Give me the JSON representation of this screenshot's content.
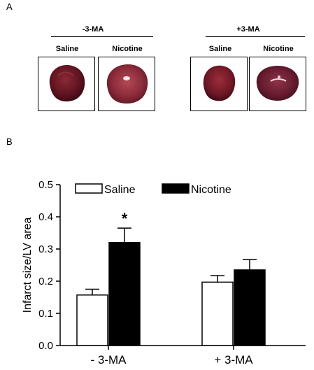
{
  "panel_a": {
    "letter": "A",
    "groups": [
      {
        "label": "-3-MA",
        "subs": [
          "Saline",
          "Nicotine"
        ]
      },
      {
        "label": "+3-MA",
        "subs": [
          "Saline",
          "Nicotine"
        ]
      }
    ]
  },
  "panel_b": {
    "letter": "B"
  },
  "chart_data": {
    "type": "bar",
    "categories": [
      "- 3-MA",
      "+ 3-MA"
    ],
    "series": [
      {
        "name": "Saline",
        "values": [
          0.157,
          0.197
        ],
        "errors": [
          0.018,
          0.02
        ],
        "color": "#ffffff"
      },
      {
        "name": "Nicotine",
        "values": [
          0.32,
          0.235
        ],
        "errors": [
          0.045,
          0.032
        ],
        "color": "#000000"
      }
    ],
    "ylabel": "Infarct size/LV area",
    "xlabel": "",
    "ylim": [
      0,
      0.5
    ],
    "yticks": [
      "0.0",
      "0.1",
      "0.2",
      "0.3",
      "0.4",
      "0.5"
    ],
    "annotations": [
      {
        "text": "*",
        "category": "- 3-MA",
        "series": "Nicotine"
      }
    ],
    "legend": "top-left",
    "grid": false
  }
}
